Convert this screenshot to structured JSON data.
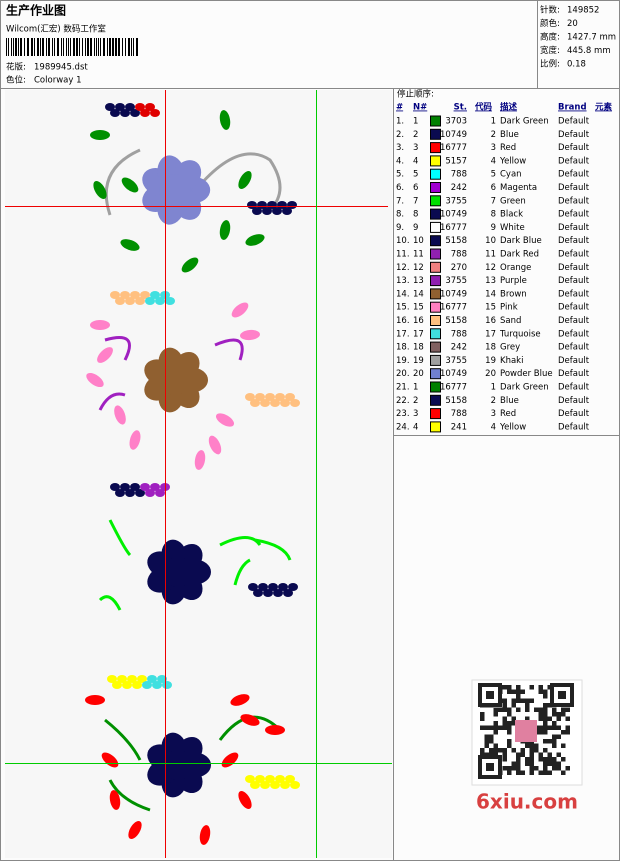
{
  "header": {
    "title": "生产作业图",
    "studio": "Wilcom(汇宏) 数码工作室",
    "design_label": "花版:",
    "design": "1989945.dst",
    "colorway_label": "色位:",
    "colorway": "Colorway 1"
  },
  "stats": [
    {
      "label": "针数:",
      "value": "149852"
    },
    {
      "label": "颜色:",
      "value": "20"
    },
    {
      "label": "高度:",
      "value": "1427.7 mm"
    },
    {
      "label": "宽度:",
      "value": "445.8 mm"
    },
    {
      "label": "比例:",
      "value": "0.18"
    }
  ],
  "table": {
    "title": "停止顺序:",
    "columns": [
      "#",
      "N#",
      "St.",
      "代码",
      "描述",
      "Brand",
      "元素"
    ],
    "rows": [
      {
        "stop": "1.",
        "needle": 1,
        "color": "#008000",
        "st": 3703,
        "code": 1,
        "desc": "Dark Green",
        "brand": "Default"
      },
      {
        "stop": "2.",
        "needle": 2,
        "color": "#0a0a50",
        "st": 10749,
        "code": 2,
        "desc": "Blue",
        "brand": "Default"
      },
      {
        "stop": "3.",
        "needle": 3,
        "color": "#ff0000",
        "st": 16777,
        "code": 3,
        "desc": "Red",
        "brand": "Default"
      },
      {
        "stop": "4.",
        "needle": 4,
        "color": "#ffff00",
        "st": 5157,
        "code": 4,
        "desc": "Yellow",
        "brand": "Default"
      },
      {
        "stop": "5.",
        "needle": 5,
        "color": "#00ffff",
        "st": 788,
        "code": 5,
        "desc": "Cyan",
        "brand": "Default"
      },
      {
        "stop": "6.",
        "needle": 6,
        "color": "#a000d0",
        "st": 242,
        "code": 6,
        "desc": "Magenta",
        "brand": "Default"
      },
      {
        "stop": "7.",
        "needle": 7,
        "color": "#00e000",
        "st": 3755,
        "code": 7,
        "desc": "Green",
        "brand": "Default"
      },
      {
        "stop": "8.",
        "needle": 8,
        "color": "#0a0a50",
        "st": 10749,
        "code": 8,
        "desc": "Black",
        "brand": "Default"
      },
      {
        "stop": "9.",
        "needle": 9,
        "color": "#ffffff",
        "st": 16777,
        "code": 9,
        "desc": "White",
        "brand": "Default"
      },
      {
        "stop": "10.",
        "needle": 10,
        "color": "#0a0a50",
        "st": 5158,
        "code": 10,
        "desc": "Dark Blue",
        "brand": "Default"
      },
      {
        "stop": "11.",
        "needle": 11,
        "color": "#9020b0",
        "st": 788,
        "code": 11,
        "desc": "Dark Red",
        "brand": "Default"
      },
      {
        "stop": "12.",
        "needle": 12,
        "color": "#f08080",
        "st": 270,
        "code": 12,
        "desc": "Orange",
        "brand": "Default"
      },
      {
        "stop": "13.",
        "needle": 13,
        "color": "#9020b0",
        "st": 3755,
        "code": 13,
        "desc": "Purple",
        "brand": "Default"
      },
      {
        "stop": "14.",
        "needle": 14,
        "color": "#906030",
        "st": 10749,
        "code": 14,
        "desc": "Brown",
        "brand": "Default"
      },
      {
        "stop": "15.",
        "needle": 15,
        "color": "#ff80c0",
        "st": 16777,
        "code": 15,
        "desc": "Pink",
        "brand": "Default"
      },
      {
        "stop": "16.",
        "needle": 16,
        "color": "#ffc080",
        "st": 5158,
        "code": 16,
        "desc": "Sand",
        "brand": "Default"
      },
      {
        "stop": "17.",
        "needle": 17,
        "color": "#40e0e0",
        "st": 788,
        "code": 17,
        "desc": "Turquoise",
        "brand": "Default"
      },
      {
        "stop": "18.",
        "needle": 18,
        "color": "#806060",
        "st": 242,
        "code": 18,
        "desc": "Grey",
        "brand": "Default"
      },
      {
        "stop": "19.",
        "needle": 19,
        "color": "#a0a0a0",
        "st": 3755,
        "code": 19,
        "desc": "Khaki",
        "brand": "Default"
      },
      {
        "stop": "20.",
        "needle": 20,
        "color": "#7080d0",
        "st": 10749,
        "code": 20,
        "desc": "Powder Blue",
        "brand": "Default"
      },
      {
        "stop": "21.",
        "needle": 1,
        "color": "#008000",
        "st": 16777,
        "code": 1,
        "desc": "Dark Green",
        "brand": "Default"
      },
      {
        "stop": "22.",
        "needle": 2,
        "color": "#0a0a50",
        "st": 5158,
        "code": 2,
        "desc": "Blue",
        "brand": "Default"
      },
      {
        "stop": "23.",
        "needle": 3,
        "color": "#ff0000",
        "st": 788,
        "code": 3,
        "desc": "Red",
        "brand": "Default"
      },
      {
        "stop": "24.",
        "needle": 4,
        "color": "#ffff00",
        "st": 241,
        "code": 4,
        "desc": "Yellow",
        "brand": "Default"
      }
    ]
  },
  "watermark": "6xiu.com"
}
